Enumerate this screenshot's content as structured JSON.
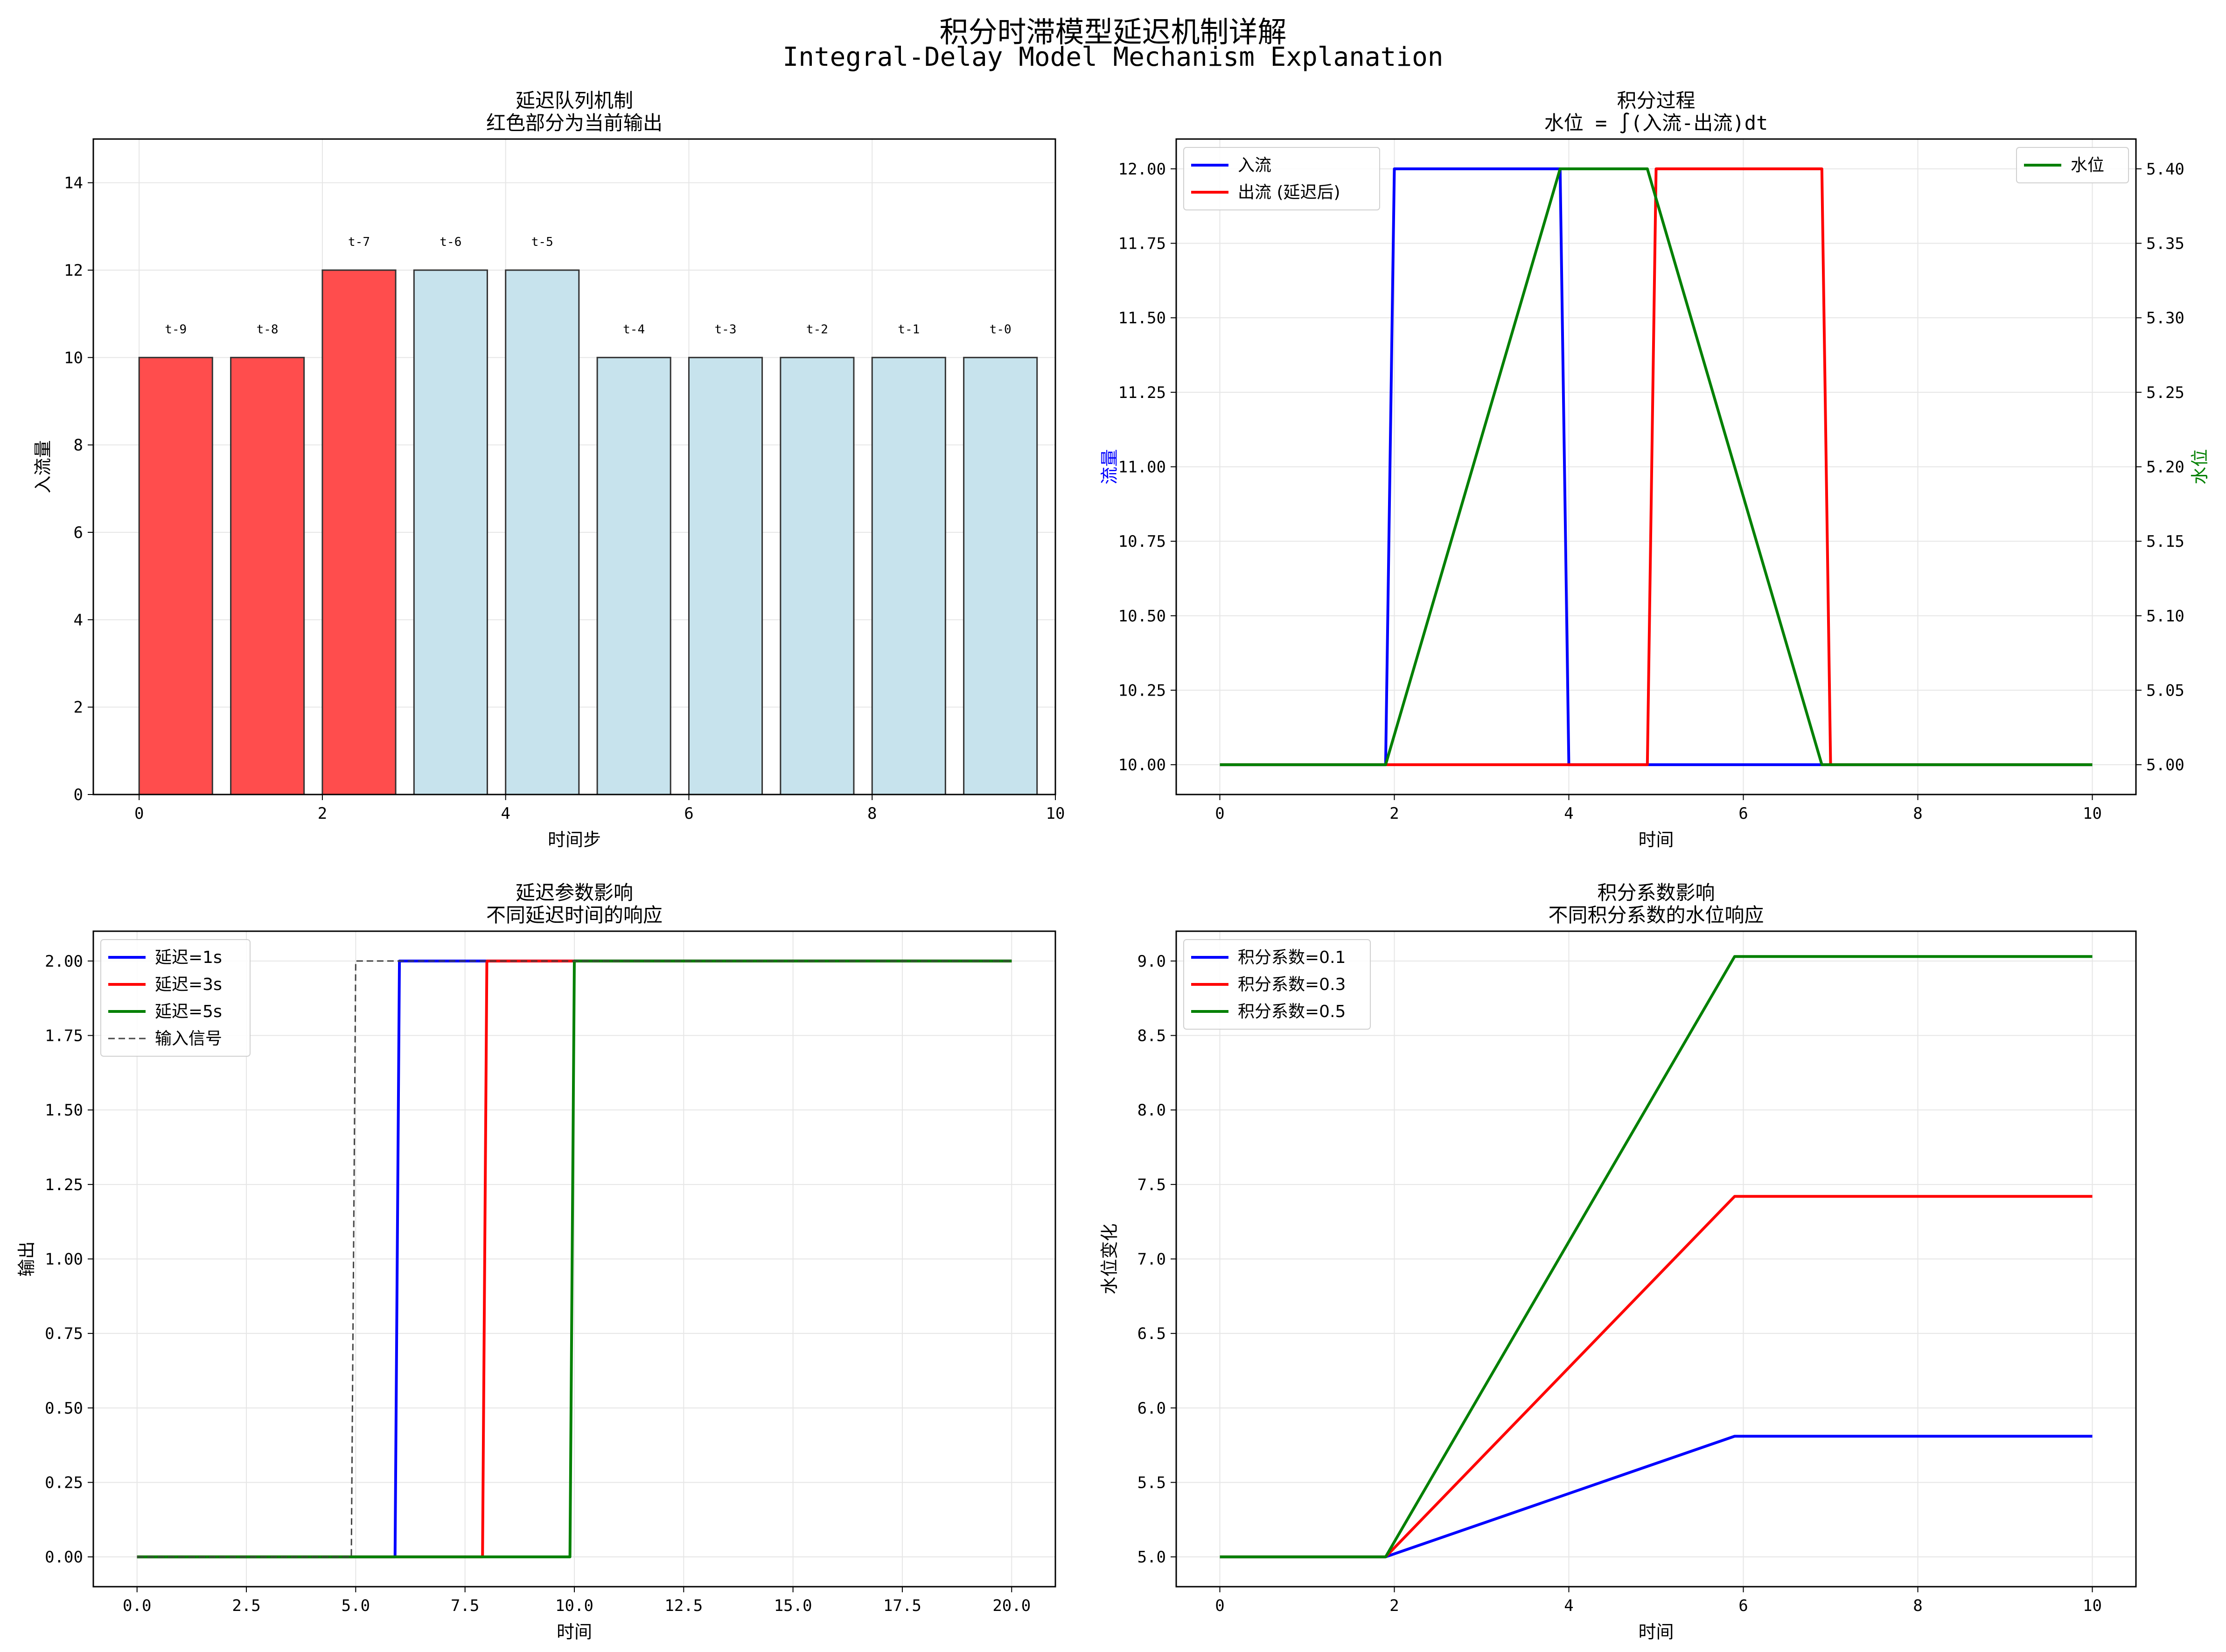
{
  "figure": {
    "title": "积分时滞模型延迟机制详解",
    "subtitle": "Integral-Delay Model Mechanism Explanation"
  },
  "chart_data": [
    {
      "id": "queue",
      "type": "bar",
      "title": "延迟队列机制",
      "subtitle": "红色部分为当前输出",
      "xlabel": "时间步",
      "ylabel": "入流量",
      "xlim": [
        -0.5,
        10
      ],
      "ylim": [
        0,
        15
      ],
      "xticks": [
        0,
        2,
        4,
        6,
        8,
        10
      ],
      "yticks": [
        0,
        2,
        4,
        6,
        8,
        10,
        12,
        14
      ],
      "grid": true,
      "x": [
        0,
        1,
        2,
        3,
        4,
        5,
        6,
        7,
        8,
        9
      ],
      "values": [
        10,
        10,
        12,
        12,
        12,
        10,
        10,
        10,
        10,
        10
      ],
      "bar_labels": [
        "t-9",
        "t-8",
        "t-7",
        "t-6",
        "t-5",
        "t-4",
        "t-3",
        "t-2",
        "t-1",
        "t-0"
      ],
      "highlight_count": 3,
      "colors": {
        "highlight": "#ff4d4d",
        "normal": "#c7e3ed",
        "edge": "#333333"
      }
    },
    {
      "id": "integration",
      "type": "line",
      "title": "积分过程",
      "subtitle": "水位 = ∫(入流-出流)dt",
      "xlabel": "时间",
      "ylabel": "流量",
      "y2label": "水位",
      "xlim": [
        -0.5,
        10.5
      ],
      "ylim": [
        9.9,
        12.1
      ],
      "y2lim": [
        4.98,
        5.42
      ],
      "xticks": [
        0,
        2,
        4,
        6,
        8,
        10
      ],
      "yticks": [
        10.0,
        10.25,
        10.5,
        10.75,
        11.0,
        11.25,
        11.5,
        11.75,
        12.0
      ],
      "y2ticks": [
        5.0,
        5.05,
        5.1,
        5.15,
        5.2,
        5.25,
        5.3,
        5.35,
        5.4
      ],
      "grid": true,
      "legend_position": "upper-left",
      "legend2_position": "upper-right",
      "series": [
        {
          "name": "入流",
          "color": "#0000ff",
          "axis": "left",
          "x": [
            0,
            1.9,
            2.0,
            3.9,
            4.0,
            7.0,
            10
          ],
          "y": [
            10,
            10,
            12,
            12,
            10,
            10,
            10
          ]
        },
        {
          "name": "出流 (延迟后)",
          "color": "#ff0000",
          "axis": "left",
          "x": [
            0,
            4.9,
            5.0,
            6.9,
            7.0,
            10
          ],
          "y": [
            10,
            10,
            12,
            12,
            10,
            10
          ]
        },
        {
          "name": "水位",
          "color": "#008000",
          "axis": "right",
          "x": [
            0,
            1.9,
            3.9,
            4.9,
            6.9,
            10
          ],
          "y": [
            5.0,
            5.0,
            5.4,
            5.4,
            5.0,
            5.0
          ]
        }
      ]
    },
    {
      "id": "delay-effect",
      "type": "line",
      "title": "延迟参数影响",
      "subtitle": "不同延迟时间的响应",
      "xlabel": "时间",
      "ylabel": "输出",
      "xlim": [
        -1,
        21
      ],
      "ylim": [
        -0.1,
        2.1
      ],
      "xticks": [
        0.0,
        2.5,
        5.0,
        7.5,
        10.0,
        12.5,
        15.0,
        17.5,
        20.0
      ],
      "yticks": [
        0.0,
        0.25,
        0.5,
        0.75,
        1.0,
        1.25,
        1.5,
        1.75,
        2.0
      ],
      "grid": true,
      "legend_position": "upper-left",
      "series": [
        {
          "name": "延迟=1s",
          "color": "#0000ff",
          "x": [
            0,
            5.9,
            6.0,
            20
          ],
          "y": [
            0,
            0,
            2,
            2
          ]
        },
        {
          "name": "延迟=3s",
          "color": "#ff0000",
          "x": [
            0,
            7.9,
            8.0,
            20
          ],
          "y": [
            0,
            0,
            2,
            2
          ]
        },
        {
          "name": "延迟=5s",
          "color": "#008000",
          "x": [
            0,
            9.9,
            10.0,
            20
          ],
          "y": [
            0,
            0,
            2,
            2
          ]
        },
        {
          "name": "输入信号",
          "color": "#444444",
          "dashed": true,
          "x": [
            0,
            4.9,
            5.0,
            20
          ],
          "y": [
            0,
            0,
            2,
            2
          ]
        }
      ]
    },
    {
      "id": "gain-effect",
      "type": "line",
      "title": "积分系数影响",
      "subtitle": "不同积分系数的水位响应",
      "xlabel": "时间",
      "ylabel": "水位变化",
      "xlim": [
        -0.5,
        10.5
      ],
      "ylim": [
        4.8,
        9.2
      ],
      "xticks": [
        0,
        2,
        4,
        6,
        8,
        10
      ],
      "yticks": [
        5.0,
        5.5,
        6.0,
        6.5,
        7.0,
        7.5,
        8.0,
        8.5,
        9.0
      ],
      "grid": true,
      "legend_position": "upper-left",
      "series": [
        {
          "name": "积分系数=0.1",
          "color": "#0000ff",
          "x": [
            0,
            1.9,
            5.9,
            10
          ],
          "y": [
            5.0,
            5.0,
            5.81,
            5.81
          ]
        },
        {
          "name": "积分系数=0.3",
          "color": "#ff0000",
          "x": [
            0,
            1.9,
            5.9,
            10
          ],
          "y": [
            5.0,
            5.0,
            7.42,
            7.42
          ]
        },
        {
          "name": "积分系数=0.5",
          "color": "#008000",
          "x": [
            0,
            1.9,
            5.9,
            10
          ],
          "y": [
            5.0,
            5.0,
            9.03,
            9.03
          ]
        }
      ]
    }
  ]
}
